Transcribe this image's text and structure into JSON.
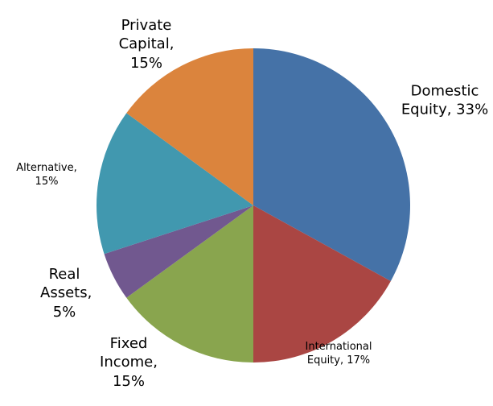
{
  "chart_data": {
    "type": "pie",
    "values": [
      33,
      17,
      15,
      5,
      15,
      15
    ],
    "value_labels": [
      "Domestic Equity, 33%",
      "International Equity, 17%",
      "Fixed Income, 15%",
      "Real Assets, 5%",
      "Alternative, 15%",
      "Private Capital, 15%"
    ],
    "colors": [
      "#4572a7",
      "#aa4643",
      "#89a54e",
      "#71588f",
      "#4198af",
      "#db843d"
    ]
  }
}
